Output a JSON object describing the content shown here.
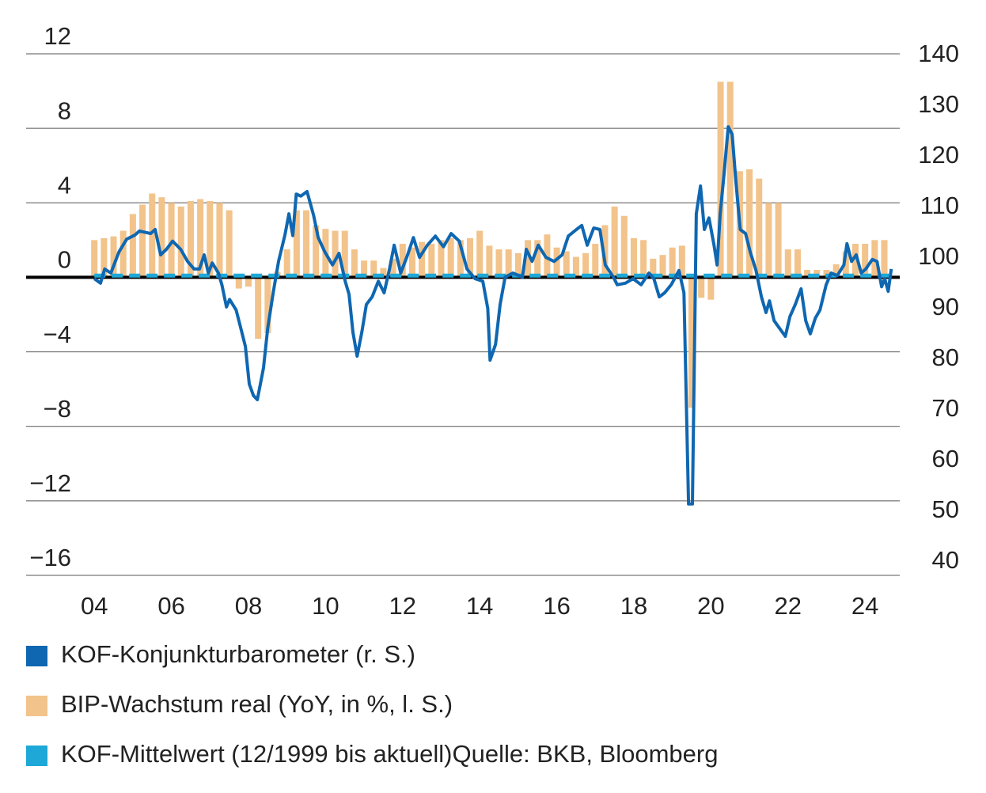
{
  "chart_data": {
    "type": "combo",
    "xlim": [
      2002.23,
      2024.9
    ],
    "xticks": [
      {
        "value": 2004,
        "label": "04"
      },
      {
        "value": 2006,
        "label": "06"
      },
      {
        "value": 2008,
        "label": "08"
      },
      {
        "value": 2010,
        "label": "10"
      },
      {
        "value": 2012,
        "label": "12"
      },
      {
        "value": 2014,
        "label": "14"
      },
      {
        "value": 2016,
        "label": "16"
      },
      {
        "value": 2018,
        "label": "18"
      },
      {
        "value": 2020,
        "label": "20"
      },
      {
        "value": 2022,
        "label": "22"
      },
      {
        "value": 2024,
        "label": "24"
      }
    ],
    "ylim": [
      -16,
      12
    ],
    "yticks": [
      {
        "value": -16,
        "label": "−16"
      },
      {
        "value": -12,
        "label": "−12"
      },
      {
        "value": -8,
        "label": "−8"
      },
      {
        "value": -4,
        "label": "−4"
      },
      0,
      4,
      8,
      12
    ],
    "y2lim": [
      37,
      140
    ],
    "y2ticks": [
      40,
      50,
      60,
      70,
      80,
      90,
      100,
      110,
      120,
      130,
      140
    ],
    "grid": true,
    "series": [
      {
        "name": "KOF-Konjunkturbarometer (r. S.)",
        "type": "line",
        "axis": "y2",
        "color": "#0f67b1",
        "x": [
          2004.0,
          2004.16,
          2004.27,
          2004.43,
          2004.64,
          2004.84,
          2005.05,
          2005.17,
          2005.46,
          2005.58,
          2005.72,
          2005.87,
          2006.03,
          2006.24,
          2006.42,
          2006.59,
          2006.73,
          2006.85,
          2006.96,
          2007.06,
          2007.22,
          2007.31,
          2007.43,
          2007.51,
          2007.68,
          2007.8,
          2007.92,
          2008.02,
          2008.13,
          2008.23,
          2008.39,
          2008.5,
          2008.64,
          2008.78,
          2008.95,
          2009.05,
          2009.15,
          2009.24,
          2009.36,
          2009.52,
          2009.69,
          2009.81,
          2009.98,
          2010.18,
          2010.35,
          2010.51,
          2010.61,
          2010.71,
          2010.82,
          2010.94,
          2011.06,
          2011.21,
          2011.37,
          2011.52,
          2011.66,
          2011.78,
          2011.95,
          2012.13,
          2012.28,
          2012.44,
          2012.64,
          2012.85,
          2013.06,
          2013.26,
          2013.47,
          2013.67,
          2013.88,
          2014.08,
          2014.21,
          2014.27,
          2014.41,
          2014.53,
          2014.66,
          2014.86,
          2015.11,
          2015.21,
          2015.36,
          2015.52,
          2015.72,
          2015.93,
          2016.14,
          2016.3,
          2016.51,
          2016.65,
          2016.79,
          2016.96,
          2017.12,
          2017.26,
          2017.47,
          2017.57,
          2017.78,
          2017.98,
          2018.19,
          2018.39,
          2018.52,
          2018.66,
          2018.8,
          2018.97,
          2019.17,
          2019.3,
          2019.42,
          2019.52,
          2019.62,
          2019.73,
          2019.83,
          2019.95,
          2020.08,
          2020.16,
          2020.24,
          2020.34,
          2020.45,
          2020.55,
          2020.65,
          2020.76,
          2020.9,
          2021.02,
          2021.17,
          2021.31,
          2021.43,
          2021.52,
          2021.64,
          2021.78,
          2021.93,
          2022.05,
          2022.19,
          2022.34,
          2022.46,
          2022.58,
          2022.71,
          2022.83,
          2022.99,
          2023.12,
          2023.28,
          2023.45,
          2023.53,
          2023.65,
          2023.77,
          2023.9,
          2024.02,
          2024.19,
          2024.31,
          2024.43,
          2024.51,
          2024.6,
          2024.68
        ],
        "values": [
          95.6,
          94.7,
          97.5,
          96.7,
          100.9,
          103.4,
          104.2,
          105.0,
          104.5,
          105.3,
          100.3,
          101.4,
          103.0,
          101.4,
          99.0,
          97.5,
          97.5,
          100.3,
          96.7,
          98.7,
          96.7,
          94.4,
          90.0,
          91.5,
          89.4,
          85.8,
          82.2,
          74.8,
          72.5,
          71.7,
          78.0,
          85.8,
          92.8,
          99.0,
          104.4,
          108.4,
          104.1,
          112.3,
          111.9,
          112.8,
          108.1,
          103.7,
          100.9,
          98.3,
          100.6,
          95.1,
          92.5,
          85.0,
          80.3,
          85.0,
          90.5,
          92.0,
          95.1,
          92.8,
          97.5,
          102.2,
          96.7,
          100.3,
          103.7,
          99.8,
          102.2,
          104.0,
          101.9,
          104.5,
          103.0,
          97.5,
          95.6,
          95.1,
          89.7,
          79.5,
          82.6,
          90.5,
          95.9,
          96.7,
          95.9,
          101.4,
          99.0,
          102.2,
          99.8,
          99.0,
          100.3,
          104.0,
          105.3,
          106.1,
          102.2,
          105.6,
          105.3,
          98.3,
          95.9,
          94.4,
          94.7,
          95.6,
          94.4,
          96.7,
          95.6,
          92.0,
          92.8,
          94.4,
          97.2,
          92.8,
          51.1,
          51.1,
          108.4,
          113.9,
          105.3,
          107.6,
          102.2,
          98.3,
          108.4,
          116.2,
          125.6,
          124.1,
          114.7,
          105.3,
          104.5,
          100.9,
          97.2,
          92.0,
          88.9,
          91.2,
          87.3,
          85.8,
          84.2,
          88.1,
          90.5,
          93.6,
          87.3,
          84.7,
          87.8,
          89.4,
          94.4,
          96.7,
          96.2,
          98.3,
          102.5,
          99.0,
          100.3,
          96.7,
          97.5,
          99.4,
          99.0,
          94.0,
          95.6,
          93.1,
          97.5
        ]
      },
      {
        "name": "BIP-Wachstum real (YoY, in %, l. S.)",
        "type": "bar",
        "color": "#f2c38b",
        "x": [
          2004,
          2004.25,
          2004.5,
          2004.75,
          2005,
          2005.25,
          2005.5,
          2005.75,
          2006,
          2006.25,
          2006.5,
          2006.75,
          2007,
          2007.25,
          2007.5,
          2007.75,
          2008,
          2008.25,
          2008.5,
          2008.75,
          2009,
          2009.25,
          2009.5,
          2009.75,
          2010,
          2010.25,
          2010.5,
          2010.75,
          2011,
          2011.25,
          2011.5,
          2011.75,
          2012,
          2012.25,
          2012.5,
          2012.75,
          2013,
          2013.25,
          2013.5,
          2013.75,
          2014,
          2014.25,
          2014.5,
          2014.75,
          2015,
          2015.25,
          2015.5,
          2015.75,
          2016,
          2016.25,
          2016.5,
          2016.75,
          2017,
          2017.25,
          2017.5,
          2017.75,
          2018,
          2018.25,
          2018.5,
          2018.75,
          2019,
          2019.25,
          2019.5,
          2019.75,
          2020,
          2020.25,
          2020.5,
          2020.75,
          2021,
          2021.25,
          2021.5,
          2021.75,
          2022,
          2022.25,
          2022.5,
          2022.75,
          2023,
          2023.25,
          2023.5,
          2023.75,
          2024,
          2024.25,
          2024.5
        ],
        "values": [
          2.0,
          2.1,
          2.2,
          2.5,
          3.4,
          3.9,
          4.5,
          4.3,
          4.0,
          3.8,
          4.1,
          4.2,
          4.1,
          4.0,
          3.6,
          -0.6,
          -0.5,
          -3.3,
          -3.0,
          0.3,
          1.5,
          3.6,
          3.6,
          2.8,
          2.6,
          2.5,
          2.5,
          1.5,
          0.9,
          0.9,
          0.5,
          1.0,
          1.8,
          1.6,
          1.9,
          1.8,
          2.0,
          2.1,
          2.0,
          2.1,
          2.5,
          1.7,
          1.5,
          1.5,
          1.3,
          2.0,
          2.0,
          2.3,
          1.6,
          1.4,
          1.1,
          1.3,
          1.8,
          2.8,
          3.8,
          3.3,
          2.1,
          2.0,
          1.0,
          1.2,
          1.6,
          1.7,
          -7.0,
          -1.1,
          -1.2,
          10.5,
          10.5,
          5.7,
          5.8,
          5.3,
          4.0,
          4.0,
          1.5,
          1.5,
          0.4,
          0.4,
          0.4,
          0.7,
          1.4,
          1.8,
          1.8,
          2.0,
          2.0
        ]
      },
      {
        "name": "KOF-Mittelwert (12/1999 bis aktuell)",
        "type": "dashed",
        "axis": "y2",
        "color": "#1da8d8",
        "x": [
          2004,
          2024.7
        ],
        "values": [
          96.2,
          96.2
        ]
      }
    ],
    "source": "Quelle: BKB, Bloomberg"
  }
}
